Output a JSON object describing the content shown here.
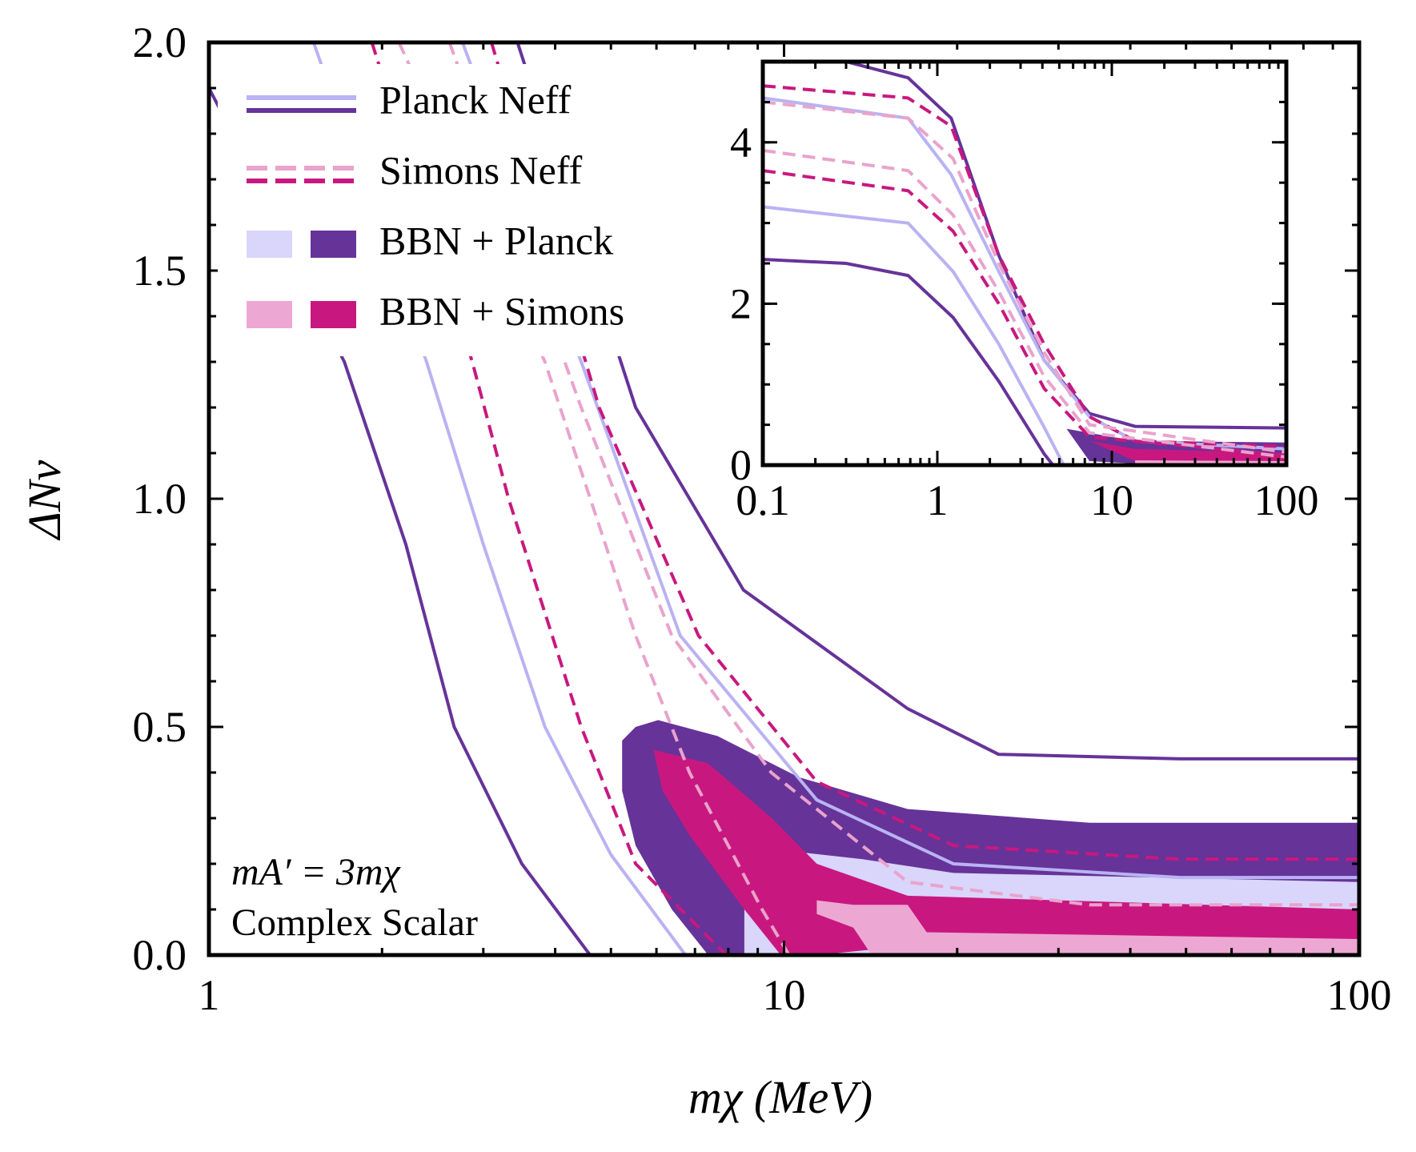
{
  "chart_data": [
    {
      "type": "line",
      "xscale": "log",
      "xlabel": "mχ (MeV)",
      "ylabel": "ΔNν",
      "xlim": [
        1,
        100
      ],
      "xticks": [
        1,
        10,
        100
      ],
      "ylim": [
        0,
        2
      ],
      "yticks": [
        {
          "value": 0,
          "label": "0.0"
        },
        0.5,
        {
          "value": 1,
          "label": "1.0"
        },
        1.5,
        {
          "value": 2,
          "label": "2.0"
        }
      ],
      "annotations": [
        "mA′ = 3mχ",
        "Complex Scalar"
      ],
      "legend_loc": "upper left",
      "series": [
        {
          "name": "BBN + Planck",
          "style": "fill",
          "colors": [
            "#d9d5fb",
            "#663399"
          ],
          "curves": [
            {
              "color": "#663399",
              "x": [
                5.23,
                5.52,
                6.04,
                7.66,
                10.6,
                16.4,
                34,
                100,
                100,
                7.38,
                6.38,
                5.52,
                5.23
              ],
              "values": [
                0.47,
                0.5,
                0.515,
                0.48,
                0.39,
                0.32,
                0.29,
                0.29,
                0,
                0,
                0.1,
                0.24,
                0.36
              ]
            },
            {
              "color": "#d9d5fb",
              "x": [
                8.53,
                9.87,
                13.7,
                19.7,
                100,
                100,
                10.2,
                8.53
              ],
              "values": [
                0.16,
                0.23,
                0.21,
                0.18,
                0.16,
                0,
                0,
                0
              ]
            }
          ]
        },
        {
          "name": "BBN + Simons",
          "style": "fill",
          "colors": [
            "#eca8d2",
            "#c8187f"
          ],
          "curves": [
            {
              "color": "#c8187f",
              "x": [
                5.93,
                7.38,
                9.52,
                11.4,
                16.4,
                100,
                100,
                16.4,
                11.4,
                9.87,
                8.53,
                6.87,
                6.15
              ],
              "values": [
                0.45,
                0.42,
                0.3,
                0.2,
                0.13,
                0.1,
                0.02,
                0.02,
                0,
                0,
                0.1,
                0.26,
                0.36
              ]
            },
            {
              "color": "#eca8d2",
              "x": [
                11.4,
                13.2,
                16.4,
                17.7,
                100,
                100,
                14.2,
                13.2,
                11.4
              ],
              "values": [
                0.12,
                0.11,
                0.11,
                0.05,
                0.035,
                0,
                0,
                0.06,
                0.09
              ]
            }
          ]
        },
        {
          "name": "Planck Neff",
          "style": "solid",
          "colors": [
            "#b9b3f3",
            "#663399"
          ],
          "curves": [
            {
              "color": "#663399",
              "x": [
                1,
                1.1,
                1.3,
                1.72,
                2.2,
                2.67,
                3.5,
                4.6
              ],
              "values": [
                1.9,
                1.8,
                1.6,
                1.3,
                0.9,
                0.5,
                0.2,
                0
              ]
            },
            {
              "color": "#663399",
              "x": [
                3.44,
                5.52,
                8.5,
                16.4,
                23.6,
                48.8,
                100
              ],
              "values": [
                2.0,
                1.2,
                0.8,
                0.54,
                0.44,
                0.43,
                0.43
              ]
            },
            {
              "color": "#b9b3f3",
              "x": [
                1.52,
                2.39,
                3.0,
                3.84,
                5.0,
                6.74
              ],
              "values": [
                2.0,
                1.3,
                0.9,
                0.5,
                0.22,
                0
              ]
            },
            {
              "color": "#b9b3f3",
              "x": [
                2.76,
                4.44,
                6.6,
                11.4,
                19.7,
                48.8,
                100
              ],
              "values": [
                2.0,
                1.3,
                0.7,
                0.34,
                0.2,
                0.17,
                0.17
              ]
            }
          ]
        },
        {
          "name": "Simons Neff",
          "style": "dashed",
          "colors": [
            "#e9a3cc",
            "#c8187f"
          ],
          "curves": [
            {
              "color": "#c8187f",
              "x": [
                1.92,
                2.87,
                3.32,
                4.44,
                5.52,
                7.93
              ],
              "values": [
                2.0,
                1.3,
                1.0,
                0.5,
                0.2,
                0
              ]
            },
            {
              "color": "#c8187f",
              "x": [
                3.1,
                4.77,
                7.1,
                11.4,
                19.7,
                48.8,
                100
              ],
              "values": [
                2.0,
                1.2,
                0.7,
                0.38,
                0.24,
                0.21,
                0.21
              ]
            },
            {
              "color": "#e9a3cc",
              "x": [
                2.14,
                3.84,
                5.52,
                6.85,
                9.16,
                10.2
              ],
              "values": [
                2.0,
                1.3,
                0.7,
                0.4,
                0.1,
                0
              ]
            },
            {
              "color": "#e9a3cc",
              "x": [
                2.62,
                4.44,
                6.38,
                9.5,
                16.4,
                34,
                100
              ],
              "values": [
                2.0,
                1.2,
                0.7,
                0.4,
                0.16,
                0.11,
                0.11
              ]
            }
          ]
        }
      ]
    },
    {
      "type": "line",
      "xscale": "log",
      "xlim": [
        0.1,
        100
      ],
      "xticks": [
        0.1,
        1,
        10,
        100
      ],
      "ylim": [
        0,
        5
      ],
      "yticks": [
        0,
        2,
        4
      ],
      "series": [
        {
          "style": "fill",
          "curves": [
            {
              "color": "#663399",
              "x": [
                5.5,
                7.45,
                13.6,
                100,
                100,
                13.6,
                7.45
              ],
              "values": [
                0.45,
                0.4,
                0.3,
                0.28,
                0.02,
                0.02,
                0.05
              ]
            },
            {
              "color": "#c8187f",
              "x": [
                7.45,
                13.6,
                100,
                100,
                13.6
              ],
              "values": [
                0.3,
                0.2,
                0.15,
                0.04,
                0.05
              ]
            },
            {
              "color": "#eca8d2",
              "x": [
                13.6,
                100,
                100,
                13.6
              ],
              "values": [
                0.06,
                0.05,
                0.0,
                0.0
              ]
            }
          ]
        },
        {
          "style": "solid",
          "curves": [
            {
              "color": "#663399",
              "x": [
                0.1,
                0.3,
                0.68,
                1.2,
                2.25,
                4.09,
                7.45,
                13.6,
                100
              ],
              "values": [
                5.0,
                5.0,
                4.8,
                4.3,
                2.6,
                1.3,
                0.64,
                0.48,
                0.46
              ]
            },
            {
              "color": "#663399",
              "x": [
                0.1,
                0.3,
                0.68,
                1.23,
                2.25,
                4.09,
                4.6
              ],
              "values": [
                2.55,
                2.5,
                2.35,
                1.83,
                1.04,
                0.14,
                0
              ]
            },
            {
              "color": "#b9b3f3",
              "x": [
                0.1,
                0.68,
                1.2,
                2.25,
                4.09,
                7.45,
                13.6,
                100
              ],
              "values": [
                4.55,
                4.3,
                3.6,
                2.4,
                1.3,
                0.6,
                0.3,
                0.2
              ]
            },
            {
              "color": "#b9b3f3",
              "x": [
                0.1,
                0.68,
                1.23,
                2.25,
                4.09,
                5.3
              ],
              "values": [
                3.2,
                3.0,
                2.4,
                1.5,
                0.47,
                0
              ]
            }
          ]
        },
        {
          "style": "dashed",
          "curves": [
            {
              "color": "#c8187f",
              "x": [
                0.1,
                0.68,
                1.2,
                2.25,
                4.09,
                7.45,
                13.6,
                100
              ],
              "values": [
                4.7,
                4.55,
                4.2,
                2.6,
                1.5,
                0.6,
                0.3,
                0.23
              ]
            },
            {
              "color": "#c8187f",
              "x": [
                0.1,
                0.68,
                1.23,
                2.25,
                4.09,
                7.45,
                100
              ],
              "values": [
                3.65,
                3.4,
                2.9,
                2.0,
                0.95,
                0.35,
                0.12
              ]
            },
            {
              "color": "#e9a3cc",
              "x": [
                0.1,
                0.68,
                1.23,
                2.25,
                4.09,
                7.45,
                100
              ],
              "values": [
                4.5,
                4.3,
                3.8,
                2.5,
                1.4,
                0.5,
                0.16
              ]
            },
            {
              "color": "#e9a3cc",
              "x": [
                0.1,
                0.68,
                1.23,
                2.25,
                4.09,
                7.45,
                100
              ],
              "values": [
                3.9,
                3.65,
                3.1,
                2.15,
                1.1,
                0.4,
                0.1
              ]
            }
          ]
        }
      ]
    }
  ]
}
